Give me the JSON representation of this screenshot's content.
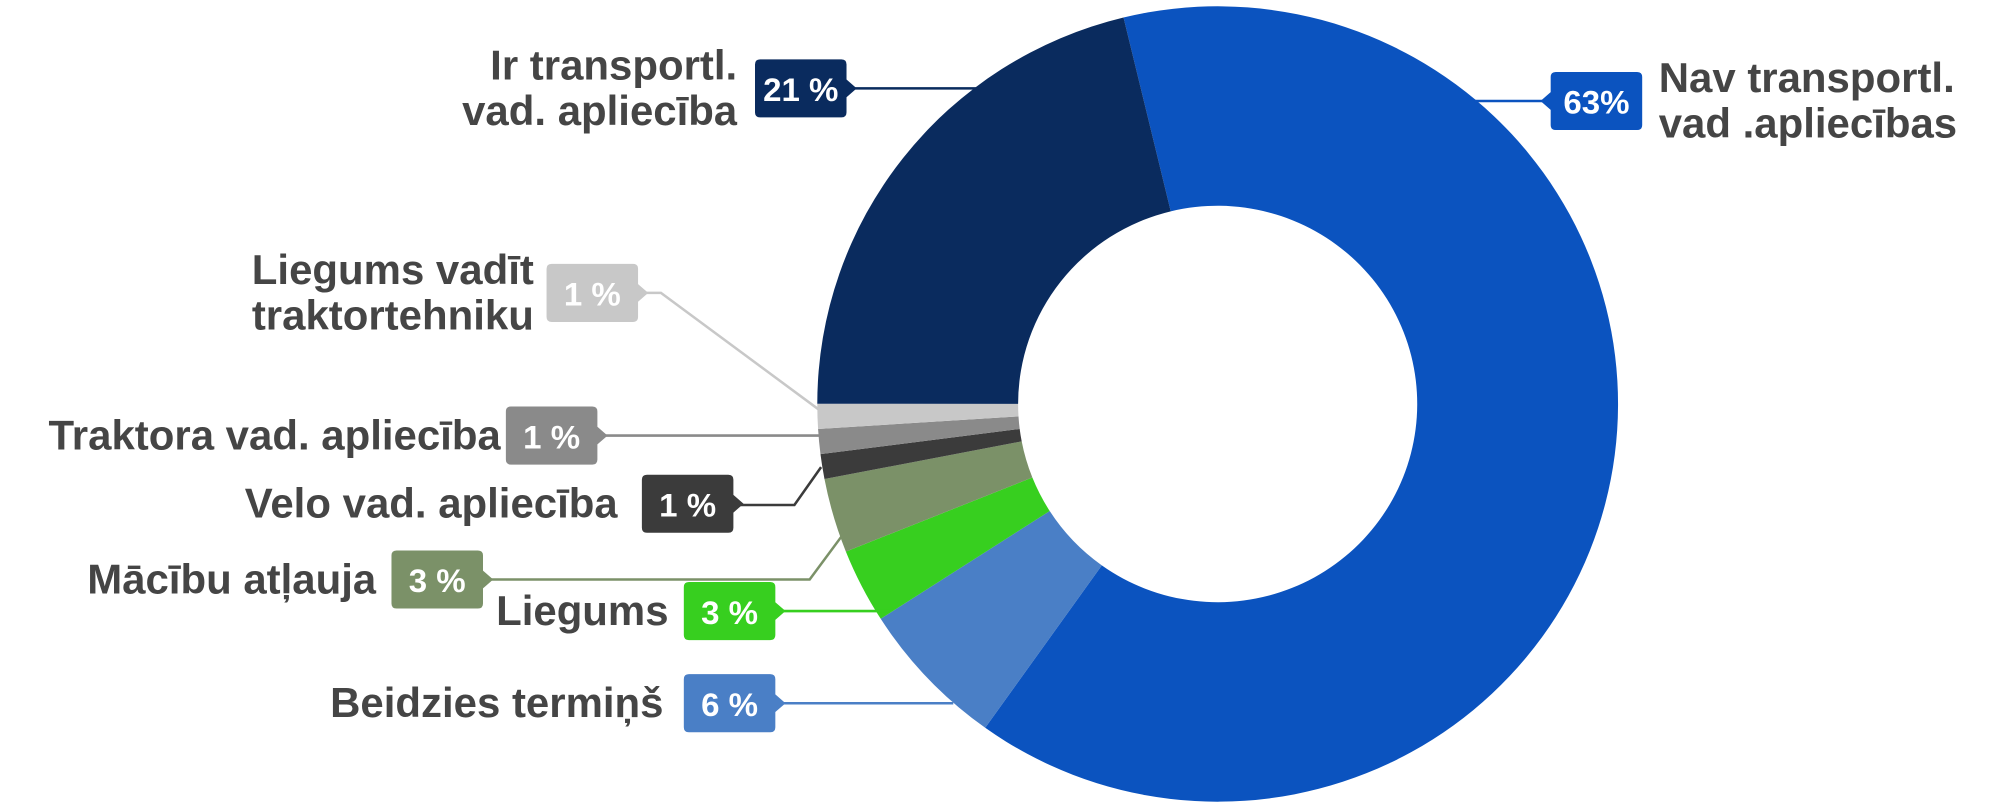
{
  "chart_data": {
    "type": "donut",
    "categories": [
      "Nav transportl.\nvad .apliecības",
      "Beidzies termiņš",
      "Liegums",
      "Mācību atļauja",
      "Velo vad. apliecība",
      "Traktora vad. apliecība",
      "Liegums vadīt\ntraktortehniku",
      "Ir transportl.\nvad. apliecība"
    ],
    "values": [
      63,
      6,
      3,
      3,
      1,
      1,
      1,
      21
    ],
    "value_labels": [
      "63%",
      "6 %",
      "3 %",
      "3 %",
      "1 %",
      "1 %",
      "1 %",
      "21 %"
    ],
    "colors": [
      "#0b53bf",
      "#4a7fc6",
      "#37cf1f",
      "#7b9168",
      "#3b3b3b",
      "#8a8a8a",
      "#c8c8c8",
      "#0a2b5e"
    ]
  }
}
